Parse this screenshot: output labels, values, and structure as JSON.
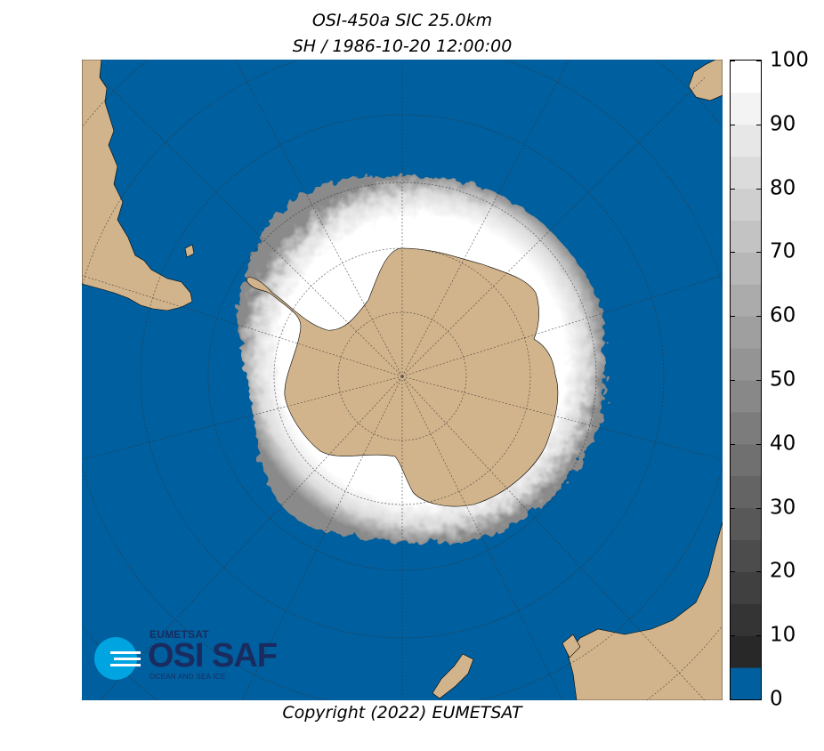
{
  "header": {
    "title_line1": "OSI-450a SIC 25.0km",
    "title_line2": "SH / 1986-10-20 12:00:00"
  },
  "footer": {
    "copyright": "Copyright (2022)  EUMETSAT"
  },
  "logo": {
    "organisation": "EUMETSAT",
    "product": "OSI SAF",
    "tagline": "OCEAN AND SEA ICE"
  },
  "colorbar": {
    "min": 0,
    "max": 100,
    "step": 5,
    "tick_labels": [
      "0",
      "10",
      "20",
      "30",
      "40",
      "50",
      "60",
      "70",
      "80",
      "90",
      "100"
    ],
    "ocean_color": "#005f9e",
    "ocean_below_value": 5
  },
  "map": {
    "projection": "south-polar-stereographic",
    "ocean_color": "#005f9e",
    "land_color": "#d2b48c",
    "ice_high_color": "#ffffff",
    "graticule": "dotted"
  }
}
